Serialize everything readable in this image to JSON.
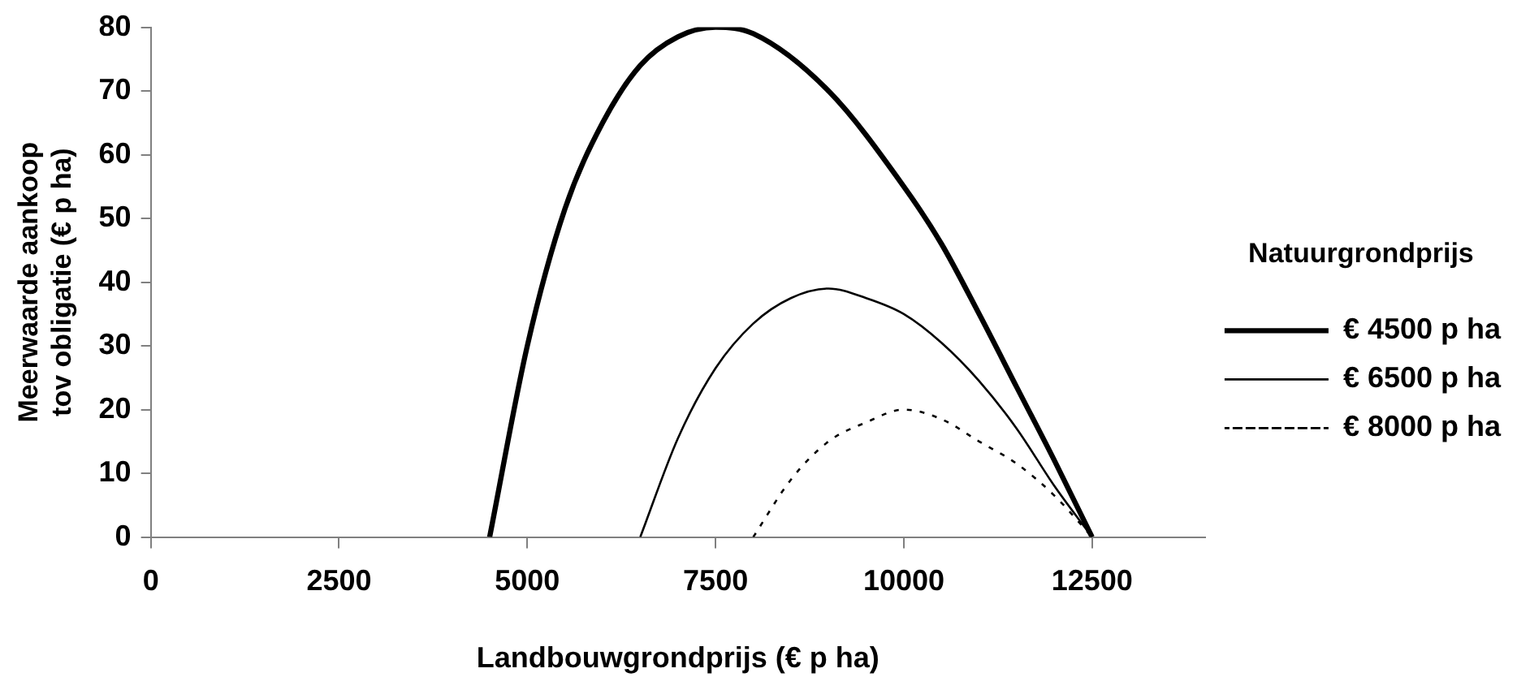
{
  "chart_data": {
    "type": "line",
    "xlabel": "Landbouwgrondprijs (€ p ha)",
    "ylabel": "Meerwaarde aankoop tov obligatie (€ p ha)",
    "legend_title": "Natuurgrondprijs",
    "legend": "right",
    "grid": false,
    "marker": "none",
    "xlim": [
      0,
      14000
    ],
    "xticks": [
      0,
      2500,
      5000,
      7500,
      10000,
      12500
    ],
    "ylim": [
      0,
      80
    ],
    "yticks": [
      0,
      10,
      20,
      30,
      40,
      50,
      60,
      70,
      80
    ],
    "series": [
      {
        "name": "€ 4500 p ha",
        "color": "#000000",
        "line_style": "solid",
        "x": [
          4500,
          5000,
          5500,
          6000,
          6500,
          7000,
          7500,
          8000,
          9000,
          10000,
          10500,
          11000,
          11500,
          12000,
          12500
        ],
        "values": [
          0,
          30,
          51.5,
          65,
          74,
          78.5,
          80,
          79,
          70,
          55,
          46,
          35,
          23.5,
          12,
          0
        ]
      },
      {
        "name": "€ 6500 p ha",
        "color": "#000000",
        "line_style": "solid",
        "x": [
          6500,
          7000,
          7500,
          8000,
          8500,
          9000,
          9500,
          10000,
          10500,
          11000,
          11500,
          12000,
          12500
        ],
        "values": [
          0,
          15.5,
          26.5,
          33.5,
          37.5,
          39,
          37.5,
          35,
          30.5,
          24.5,
          17,
          8,
          0
        ]
      },
      {
        "name": "€ 8000 p ha",
        "color": "#000000",
        "line_style": "dotted",
        "x": [
          8000,
          8500,
          9000,
          9500,
          10000,
          10500,
          11000,
          11500,
          12000,
          12500
        ],
        "values": [
          0,
          9,
          15,
          18,
          20,
          18.5,
          15,
          11.5,
          6.5,
          0
        ]
      }
    ]
  }
}
